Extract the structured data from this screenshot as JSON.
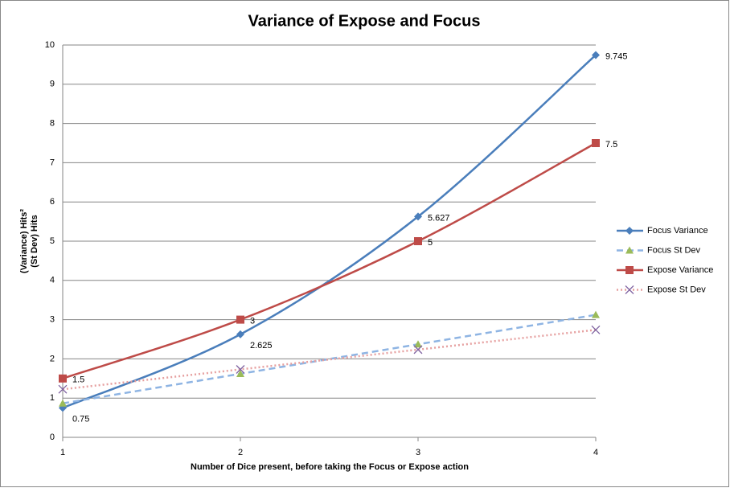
{
  "chart_data": {
    "type": "line",
    "title": "Variance of Expose and Focus",
    "xlabel": "Number of Dice present, before taking the Focus or Expose action",
    "ylabel": [
      "(Variance) Hits²",
      "(St Dev) Hits"
    ],
    "x": [
      1,
      2,
      3,
      4
    ],
    "xlim": [
      1,
      4
    ],
    "xticks": [
      1,
      2,
      3,
      4
    ],
    "ylim": [
      0,
      10
    ],
    "yticks": [
      0,
      1,
      2,
      3,
      4,
      5,
      6,
      7,
      8,
      9,
      10
    ],
    "grid": true,
    "legend": "right",
    "smooth": true,
    "series": [
      {
        "name": "Focus Variance",
        "color": "#4a7ebb",
        "marker": "diamond",
        "dash": "solid",
        "show_labels": true,
        "values": [
          0.75,
          2.625,
          5.627,
          9.745
        ]
      },
      {
        "name": "Focus St Dev",
        "color": "#8eb4e3",
        "marker": "triangle",
        "marker_color": "#9bbb59",
        "dash": "dashed",
        "show_labels": false,
        "values": [
          0.866,
          1.62,
          2.372,
          3.122
        ]
      },
      {
        "name": "Expose Variance",
        "color": "#be4b48",
        "marker": "square",
        "dash": "solid",
        "show_labels": true,
        "values": [
          1.5,
          3,
          5,
          7.5
        ]
      },
      {
        "name": "Expose St Dev",
        "color": "#e6a0a0",
        "marker": "x",
        "marker_color": "#8064a2",
        "dash": "dotted",
        "show_labels": false,
        "values": [
          1.225,
          1.732,
          2.236,
          2.739
        ]
      }
    ]
  }
}
